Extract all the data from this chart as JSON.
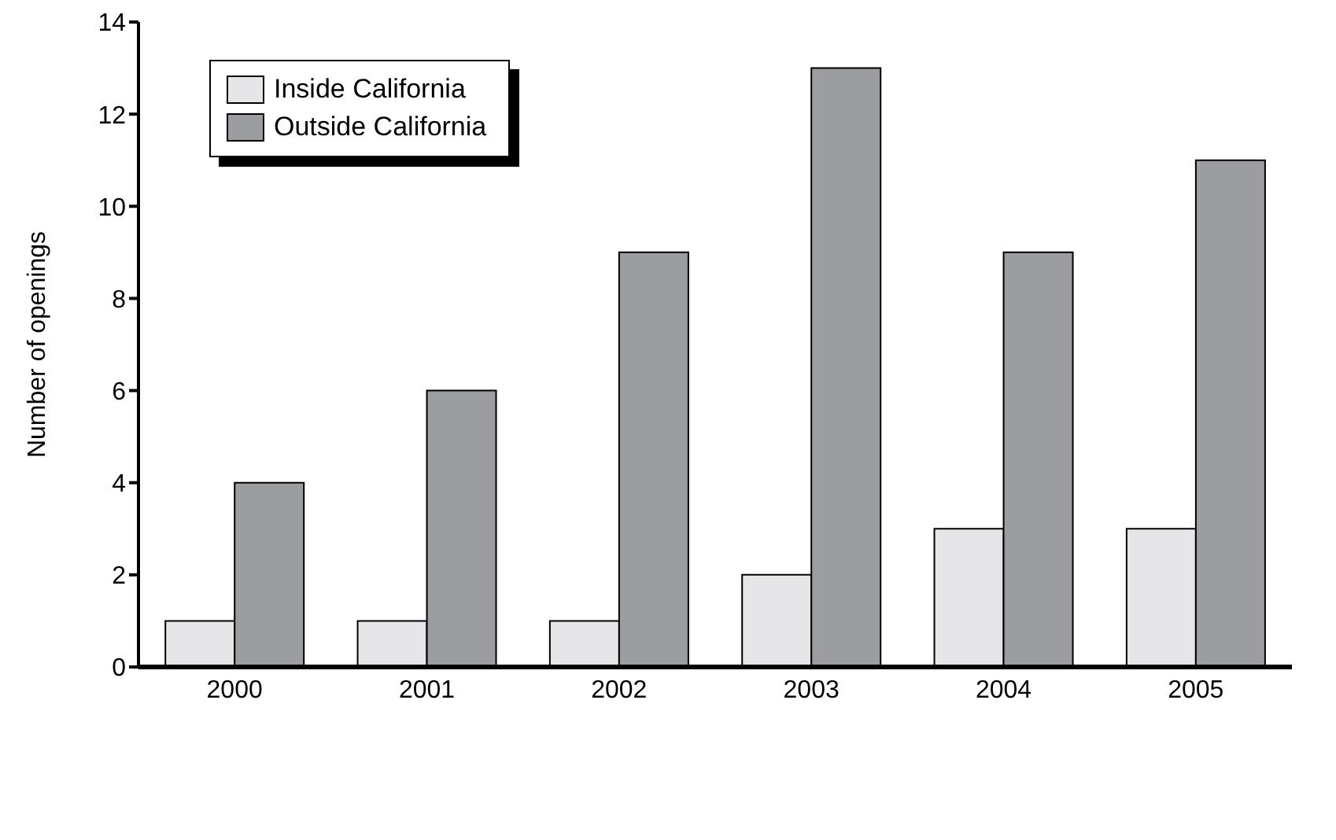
{
  "chart_data": {
    "type": "bar",
    "ylabel": "Number of openings",
    "categories": [
      "2000",
      "2001",
      "2002",
      "2003",
      "2004",
      "2005"
    ],
    "series": [
      {
        "name": "Inside California",
        "color": "#e6e6e8",
        "values": [
          1,
          1,
          1,
          2,
          3,
          3
        ]
      },
      {
        "name": "Outside California",
        "color": "#9c9da1",
        "values": [
          4,
          6,
          9,
          13,
          9,
          11
        ]
      }
    ],
    "ylim": [
      0,
      14
    ],
    "yticks": [
      0,
      2,
      4,
      6,
      8,
      10,
      12,
      14
    ],
    "grid": false,
    "legend": "top left"
  }
}
